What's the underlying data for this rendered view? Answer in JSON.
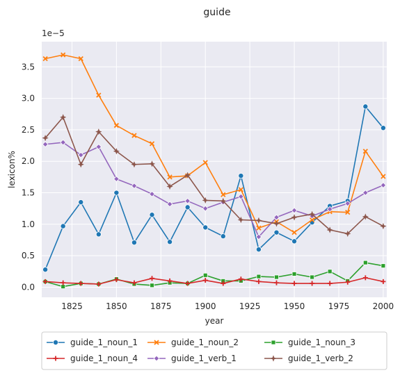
{
  "chart_data": {
    "type": "line",
    "title": "guide",
    "xlabel": "year",
    "ylabel": "lexicon%",
    "y_scale_label": "1e−5",
    "xlim": [
      1808,
      2002
    ],
    "ylim": [
      -0.16,
      3.9
    ],
    "x_ticks": [
      1825,
      1850,
      1875,
      1900,
      1925,
      1950,
      1975,
      2000
    ],
    "y_ticks": [
      0.0,
      0.5,
      1.0,
      1.5,
      2.0,
      2.5,
      3.0,
      3.5
    ],
    "y_tick_labels": [
      "0.0",
      "0.5",
      "1.0",
      "1.5",
      "2.0",
      "2.5",
      "3.0",
      "3.5"
    ],
    "grid": true,
    "legend_position": "bottom",
    "x": [
      1810,
      1820,
      1830,
      1840,
      1850,
      1860,
      1870,
      1880,
      1890,
      1900,
      1910,
      1920,
      1930,
      1940,
      1950,
      1960,
      1970,
      1980,
      1990,
      2000
    ],
    "series": [
      {
        "name": "guide_1_noun_1",
        "color": "#1f77b4",
        "marker": "circle",
        "values": [
          0.28,
          0.97,
          1.35,
          0.84,
          1.5,
          0.71,
          1.15,
          0.72,
          1.27,
          0.95,
          0.81,
          1.77,
          0.6,
          0.87,
          0.73,
          1.03,
          1.29,
          1.37,
          2.87,
          2.53
        ]
      },
      {
        "name": "guide_1_noun_2",
        "color": "#ff7f0e",
        "marker": "x",
        "values": [
          3.63,
          3.69,
          3.63,
          3.05,
          2.57,
          2.41,
          2.28,
          1.75,
          1.77,
          1.98,
          1.47,
          1.55,
          0.94,
          1.04,
          0.87,
          1.07,
          1.2,
          1.19,
          2.16,
          1.76
        ]
      },
      {
        "name": "guide_1_noun_3",
        "color": "#2ca02c",
        "marker": "square",
        "values": [
          0.09,
          0.01,
          0.06,
          0.05,
          0.13,
          0.05,
          0.03,
          0.07,
          0.06,
          0.19,
          0.1,
          0.1,
          0.17,
          0.16,
          0.21,
          0.16,
          0.25,
          0.1,
          0.39,
          0.34
        ]
      },
      {
        "name": "guide_1_noun_4",
        "color": "#d62728",
        "marker": "plus",
        "values": [
          0.09,
          0.07,
          0.06,
          0.05,
          0.12,
          0.07,
          0.14,
          0.1,
          0.06,
          0.11,
          0.06,
          0.13,
          0.09,
          0.07,
          0.06,
          0.06,
          0.06,
          0.08,
          0.15,
          0.09
        ]
      },
      {
        "name": "guide_1_verb_1",
        "color": "#9467bd",
        "marker": "diamond",
        "values": [
          2.27,
          2.3,
          2.1,
          2.23,
          1.72,
          1.61,
          1.48,
          1.32,
          1.37,
          1.25,
          1.35,
          1.44,
          0.8,
          1.11,
          1.22,
          1.13,
          1.24,
          1.33,
          1.5,
          1.62
        ]
      },
      {
        "name": "guide_1_verb_2",
        "color": "#8c564b",
        "marker": "star",
        "values": [
          2.37,
          2.7,
          1.95,
          2.47,
          2.16,
          1.95,
          1.96,
          1.6,
          1.78,
          1.38,
          1.37,
          1.07,
          1.06,
          1.01,
          1.11,
          1.16,
          0.91,
          0.85,
          1.12,
          0.97
        ]
      }
    ]
  }
}
